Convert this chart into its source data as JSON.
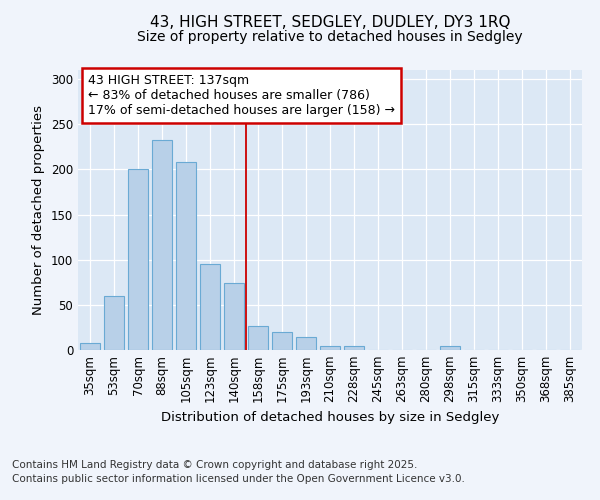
{
  "title1": "43, HIGH STREET, SEDGLEY, DUDLEY, DY3 1RQ",
  "title2": "Size of property relative to detached houses in Sedgley",
  "xlabel": "Distribution of detached houses by size in Sedgley",
  "ylabel": "Number of detached properties",
  "categories": [
    "35sqm",
    "53sqm",
    "70sqm",
    "88sqm",
    "105sqm",
    "123sqm",
    "140sqm",
    "158sqm",
    "175sqm",
    "193sqm",
    "210sqm",
    "228sqm",
    "245sqm",
    "263sqm",
    "280sqm",
    "298sqm",
    "315sqm",
    "333sqm",
    "350sqm",
    "368sqm",
    "385sqm"
  ],
  "values": [
    8,
    60,
    200,
    232,
    208,
    95,
    74,
    27,
    20,
    14,
    4,
    4,
    0,
    0,
    0,
    4,
    0,
    0,
    0,
    0,
    0
  ],
  "bar_color": "#b8d0e8",
  "bar_edge_color": "#6aaad4",
  "figure_bg_color": "#f0f4fb",
  "plot_bg_color": "#dce8f5",
  "red_line_x": 6.5,
  "annotation_line1": "43 HIGH STREET: 137sqm",
  "annotation_line2": "← 83% of detached houses are smaller (786)",
  "annotation_line3": "17% of semi-detached houses are larger (158) →",
  "annotation_box_color": "#ffffff",
  "annotation_box_edge": "#cc0000",
  "ylim": [
    0,
    310
  ],
  "yticks": [
    0,
    50,
    100,
    150,
    200,
    250,
    300
  ],
  "footer": "Contains HM Land Registry data © Crown copyright and database right 2025.\nContains public sector information licensed under the Open Government Licence v3.0.",
  "title_fontsize": 11,
  "subtitle_fontsize": 10,
  "axis_label_fontsize": 9.5,
  "tick_fontsize": 8.5,
  "annotation_fontsize": 9,
  "footer_fontsize": 7.5
}
